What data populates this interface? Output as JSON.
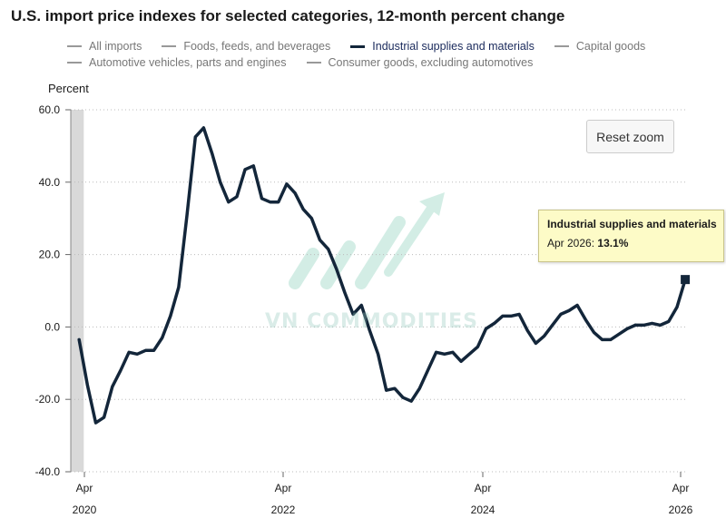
{
  "chart_data": {
    "type": "line",
    "title": "U.S. import price indexes for selected categories, 12-month percent change",
    "ylabel": "Percent",
    "ylim": [
      -40,
      60
    ],
    "yticks": [
      "60.0",
      "40.0",
      "20.0",
      "0.0",
      "-20.0",
      "-40.0"
    ],
    "xticks": [
      {
        "month": "Apr",
        "year": "2020"
      },
      {
        "month": "Apr",
        "year": "2022"
      },
      {
        "month": "Apr",
        "year": "2024"
      },
      {
        "month": "Apr",
        "year": "2026"
      }
    ],
    "recession_shading": {
      "start": "2020-02",
      "end": "2020-04",
      "color": "#d9d9d9"
    },
    "legend": [
      {
        "name": "All imports",
        "active": false
      },
      {
        "name": "Foods, feeds, and beverages",
        "active": false
      },
      {
        "name": "Industrial supplies and materials",
        "active": true
      },
      {
        "name": "Capital goods",
        "active": false
      },
      {
        "name": "Automotive vehicles, parts and engines",
        "active": false
      },
      {
        "name": "Consumer goods, excluding automotives",
        "active": false
      }
    ],
    "series": [
      {
        "name": "Industrial supplies and materials",
        "color": "#13263a",
        "segments": [
          {
            "start": "2020-03",
            "values": [
              -3.5,
              -16,
              -26.5,
              -25,
              -16.5,
              -12,
              -7,
              -7.5,
              -6.5,
              -6.5,
              -3,
              3,
              11,
              31,
              52.5,
              55,
              48,
              40,
              34.5,
              36,
              43.5,
              44.5,
              35.5,
              34.5,
              34.5,
              39.5,
              37,
              32.5,
              30,
              24,
              21.5,
              16,
              9.5,
              3.5,
              6,
              -1,
              -7.5,
              -17.5,
              -17,
              -19.5,
              -20.5,
              -17,
              -12,
              -7,
              -7.5,
              -7,
              -9.5,
              -7.5,
              -5.5,
              -0.5,
              1,
              3,
              3,
              3.5,
              -1,
              -4.5,
              -2.5,
              0.5,
              3.5,
              4.5,
              6,
              2,
              -1.5,
              -3.5,
              -3.5,
              -2,
              -0.5,
              0.5
            ]
          },
          {
            "start": "2025-10",
            "values": [
              0.5,
              0.5,
              1,
              0.5,
              1.5,
              5.5,
              13.1
            ]
          }
        ]
      }
    ],
    "annotations": {
      "reset_zoom": "Reset zoom",
      "tooltip_title": "Industrial supplies and materials",
      "tooltip_label": "Apr 2026:",
      "tooltip_value": "13.1%"
    }
  },
  "watermark": "VN COMMODITIES"
}
